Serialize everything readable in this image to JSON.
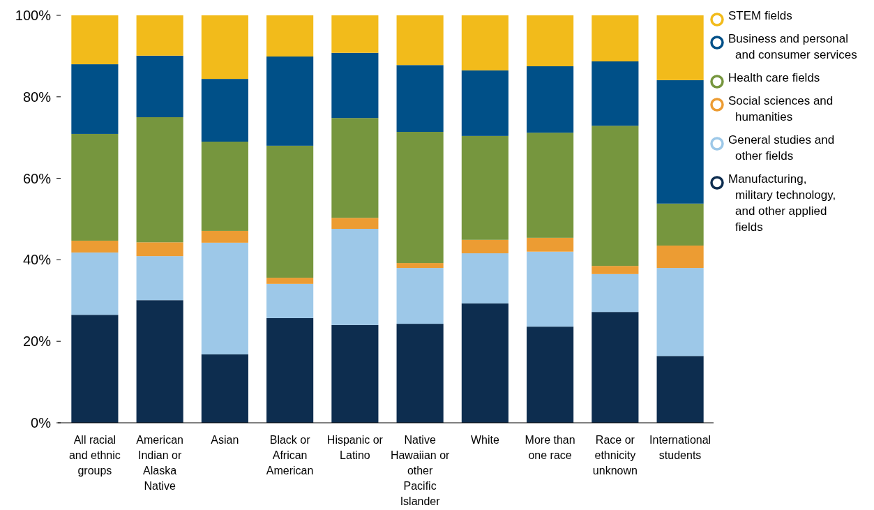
{
  "chart_data": {
    "type": "bar",
    "stacked": true,
    "legend": "right",
    "grid": false,
    "categories": [
      "All racial and ethnic groups",
      "American Indian or Alaska Native",
      "Asian",
      "Black or African American",
      "Hispanic or Latino",
      "Native Hawaiian or other Pacific Islander",
      "White",
      "More than one race",
      "Race or ethnicity unknown",
      "International students"
    ],
    "ylim": [
      0,
      100
    ],
    "yticks": [
      {
        "value": 0,
        "label": "0%"
      },
      {
        "value": 20,
        "label": "20%"
      },
      {
        "value": 40,
        "label": "40%"
      },
      {
        "value": 60,
        "label": "60%"
      },
      {
        "value": 80,
        "label": "80%"
      },
      {
        "value": 100,
        "label": "100%"
      }
    ],
    "series": [
      {
        "name": "Manufacturing, military technology, and other applied fields",
        "color": "#0d2d4f",
        "values": [
          26.5,
          30.1,
          16.8,
          25.7,
          24.0,
          24.3,
          29.3,
          23.6,
          27.2,
          16.4
        ]
      },
      {
        "name": "General studies and other fields",
        "color": "#9dc8e8",
        "values": [
          15.3,
          10.8,
          27.4,
          8.4,
          23.6,
          13.7,
          12.3,
          18.4,
          9.3,
          21.6
        ]
      },
      {
        "name": "Social sciences and humanities",
        "color": "#ec9c33",
        "values": [
          2.9,
          3.4,
          2.9,
          1.5,
          2.7,
          1.2,
          3.3,
          3.4,
          2.0,
          5.5
        ]
      },
      {
        "name": "Health care fields",
        "color": "#76963e",
        "values": [
          26.2,
          30.7,
          21.9,
          32.4,
          24.5,
          32.2,
          25.5,
          25.8,
          34.4,
          10.3
        ]
      },
      {
        "name": "Business and personal and consumer services",
        "color": "#005088",
        "values": [
          17.1,
          15.1,
          15.4,
          21.9,
          16.0,
          16.4,
          16.1,
          16.3,
          15.8,
          30.3
        ]
      },
      {
        "name": "STEM fields",
        "color": "#f2bb1b",
        "values": [
          12.0,
          9.9,
          15.6,
          10.1,
          9.2,
          12.2,
          13.5,
          12.5,
          11.3,
          15.9
        ]
      }
    ]
  }
}
